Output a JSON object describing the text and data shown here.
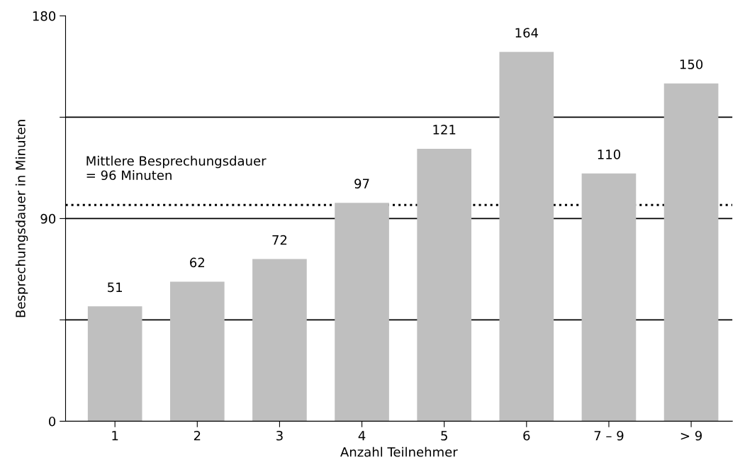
{
  "chart_data": {
    "type": "bar",
    "xlabel": "Anzahl Teilnehmer",
    "ylabel": "Besprechungsdauer in Minuten",
    "categories": [
      "1",
      "2",
      "3",
      "4",
      "5",
      "6",
      "7 – 9",
      "> 9"
    ],
    "values": [
      51,
      62,
      72,
      97,
      121,
      164,
      110,
      150
    ],
    "color": "#bfbfbf",
    "data_labels": true,
    "ylim": [
      0,
      180
    ],
    "yticks": [
      0,
      {
        "value": 45,
        "label": null
      },
      90,
      {
        "value": 135,
        "label": null
      },
      180
    ],
    "grid": "y",
    "ref_lines": [
      {
        "axis": "y",
        "value": 96,
        "label": "Mittlere Besprechungsdauer\n= 96 Minuten",
        "color": "#000000",
        "line_style": "dotted"
      }
    ]
  }
}
